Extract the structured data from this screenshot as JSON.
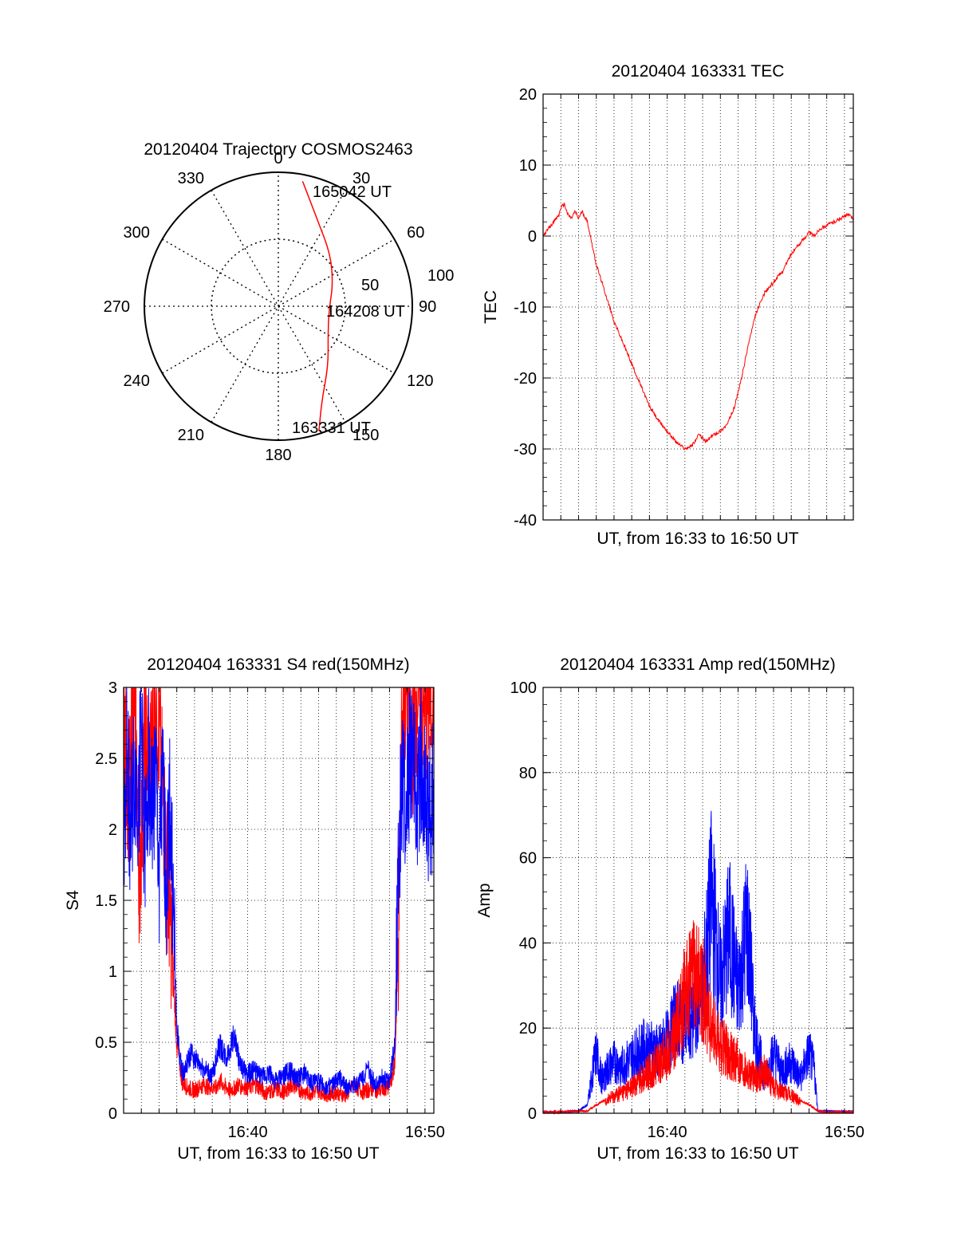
{
  "chart_data": [
    {
      "type": "polar-trajectory",
      "title": "20120404 Trajectory COSMOS2463",
      "angle_labels": [
        "0",
        "30",
        "60",
        "90",
        "120",
        "150",
        "180",
        "210",
        "240",
        "270",
        "300",
        "330"
      ],
      "radial_labels": [
        "50",
        "100"
      ],
      "elevation_range": [
        0,
        100
      ],
      "points": [
        {
          "time": "165042 UT",
          "azimuth": 11,
          "radius": 95
        },
        {
          "time": "",
          "azimuth": 25,
          "radius": 70
        },
        {
          "time": "",
          "azimuth": 45,
          "radius": 55
        },
        {
          "time": "",
          "azimuth": 68,
          "radius": 44
        },
        {
          "time": "164208 UT",
          "azimuth": 93,
          "radius": 38
        },
        {
          "time": "",
          "azimuth": 118,
          "radius": 42
        },
        {
          "time": "",
          "azimuth": 140,
          "radius": 58
        },
        {
          "time": "",
          "azimuth": 155,
          "radius": 77
        },
        {
          "time": "163331 UT",
          "azimuth": 162,
          "radius": 98
        }
      ],
      "line_color": "#ff0000"
    },
    {
      "type": "line",
      "title": "20120404 163331 TEC",
      "xlabel": "UT, from 16:33 to 16:50 UT",
      "ylabel": "TEC",
      "ylim": [
        -40,
        20
      ],
      "yticks": [
        20,
        10,
        0,
        -10,
        -20,
        -30,
        -40
      ],
      "xlim_minutes": [
        0,
        17.5
      ],
      "grid": true,
      "series": [
        {
          "color": "#ff0000",
          "x": [
            0.0,
            0.3,
            0.6,
            0.9,
            1.0,
            1.2,
            1.4,
            1.6,
            1.8,
            2.0,
            2.2,
            2.5,
            3.0,
            3.5,
            4.0,
            4.5,
            5.0,
            5.5,
            6.0,
            6.5,
            7.0,
            7.5,
            8.0,
            8.4,
            8.8,
            9.2,
            9.6,
            10.0,
            10.4,
            10.8,
            11.2,
            11.6,
            12.0,
            12.5,
            13.0,
            13.5,
            14.0,
            14.5,
            15.0,
            15.3,
            15.6,
            16.0,
            16.4,
            16.8,
            17.2,
            17.5
          ],
          "y": [
            0,
            1,
            2,
            3,
            4,
            4.5,
            3,
            2.5,
            3.5,
            2.5,
            3.5,
            2,
            -4,
            -8,
            -12,
            -15,
            -18,
            -21,
            -24,
            -26,
            -27.5,
            -29,
            -30,
            -29.5,
            -28,
            -29,
            -28,
            -27.5,
            -26.5,
            -24,
            -20,
            -15,
            -11,
            -8,
            -6.5,
            -5,
            -2.5,
            -1,
            0.5,
            0,
            1,
            1.5,
            2,
            2.5,
            3,
            2.5
          ]
        }
      ]
    },
    {
      "type": "line",
      "title": "20120404 163331 S4 red(150MHz)",
      "xlabel": "UT, from 16:33 to 16:50 UT",
      "ylabel": "S4",
      "ylim": [
        0,
        3
      ],
      "yticks": [
        "0",
        "0.5",
        "1",
        "1.5",
        "2",
        "2.5",
        "3"
      ],
      "xtick_labels": [
        "16:40",
        "16:50"
      ],
      "xlim_minutes": [
        0,
        17.5
      ],
      "grid": true,
      "series": [
        {
          "color": "#ff0000",
          "x": [
            0.0,
            0.3,
            0.6,
            0.9,
            1.2,
            1.5,
            1.8,
            2.1,
            2.4,
            2.7,
            3.0,
            3.3,
            3.6,
            4.0,
            4.5,
            5.0,
            5.5,
            6.0,
            6.5,
            7.0,
            7.5,
            8.0,
            8.5,
            9.0,
            9.5,
            10.0,
            10.5,
            11.0,
            11.5,
            12.0,
            12.5,
            13.0,
            13.5,
            14.0,
            14.5,
            15.0,
            15.3,
            15.5,
            15.7,
            16.0,
            16.3,
            16.6,
            17.0,
            17.5
          ],
          "y": [
            2.8,
            2.2,
            3.0,
            1.6,
            2.6,
            2.4,
            3.0,
            2.5,
            1.8,
            1.2,
            0.5,
            0.22,
            0.18,
            0.16,
            0.2,
            0.18,
            0.22,
            0.16,
            0.2,
            0.18,
            0.2,
            0.14,
            0.17,
            0.15,
            0.2,
            0.16,
            0.14,
            0.16,
            0.13,
            0.15,
            0.12,
            0.2,
            0.15,
            0.17,
            0.16,
            0.2,
            0.35,
            1.2,
            2.8,
            3.0,
            2.6,
            3.0,
            2.8,
            3.0
          ]
        },
        {
          "color": "#0000ff",
          "x": [
            0.0,
            0.2,
            0.4,
            0.6,
            0.8,
            1.0,
            1.2,
            1.4,
            1.6,
            1.8,
            2.0,
            2.2,
            2.4,
            2.6,
            2.8,
            3.0,
            3.2,
            3.4,
            3.8,
            4.2,
            4.6,
            5.0,
            5.4,
            5.8,
            6.2,
            6.6,
            7.0,
            7.4,
            7.8,
            8.2,
            8.6,
            9.0,
            9.4,
            9.8,
            10.2,
            10.6,
            11.0,
            11.4,
            11.8,
            12.2,
            12.6,
            13.0,
            13.4,
            13.8,
            14.2,
            14.6,
            15.0,
            15.3,
            15.5,
            15.7,
            15.9,
            16.2,
            16.5,
            16.8,
            17.1,
            17.5
          ],
          "y": [
            2.0,
            2.6,
            1.9,
            2.4,
            2.2,
            2.7,
            1.8,
            2.5,
            2.1,
            2.4,
            1.7,
            2.3,
            1.6,
            2.2,
            1.4,
            0.6,
            0.35,
            0.28,
            0.42,
            0.35,
            0.3,
            0.26,
            0.48,
            0.38,
            0.55,
            0.32,
            0.28,
            0.3,
            0.25,
            0.28,
            0.22,
            0.26,
            0.3,
            0.24,
            0.28,
            0.22,
            0.22,
            0.18,
            0.2,
            0.24,
            0.18,
            0.2,
            0.24,
            0.3,
            0.2,
            0.25,
            0.22,
            0.5,
            1.8,
            2.4,
            2.0,
            2.6,
            2.2,
            2.5,
            2.0,
            2.3
          ]
        }
      ]
    },
    {
      "type": "line",
      "title": "20120404 163331 Amp red(150MHz)",
      "xlabel": "UT, from 16:33 to 16:50 UT",
      "ylabel": "Amp",
      "ylim": [
        0,
        100
      ],
      "yticks": [
        0,
        20,
        40,
        60,
        80,
        100
      ],
      "xtick_labels": [
        "16:40",
        "16:50"
      ],
      "xlim_minutes": [
        0,
        17.5
      ],
      "grid": true,
      "series": [
        {
          "color": "#0000ff",
          "x": [
            0.0,
            1.0,
            2.0,
            2.5,
            2.8,
            3.0,
            3.3,
            3.6,
            4.0,
            4.5,
            5.0,
            5.5,
            6.0,
            6.5,
            7.0,
            7.5,
            8.0,
            8.5,
            9.0,
            9.5,
            10.0,
            10.5,
            11.0,
            11.5,
            12.0,
            12.5,
            13.0,
            13.5,
            14.0,
            14.5,
            15.0,
            15.3,
            15.5,
            16.0,
            17.0,
            17.5
          ],
          "y": [
            0.3,
            0.3,
            0.5,
            2,
            10,
            14,
            8,
            10,
            12,
            11,
            13,
            15,
            16,
            14,
            17,
            22,
            20,
            24,
            28,
            50,
            30,
            42,
            28,
            44,
            18,
            8,
            14,
            10,
            12,
            8,
            14,
            10,
            0.5,
            0.5,
            0.4,
            0.4
          ]
        },
        {
          "color": "#ff0000",
          "x": [
            0.0,
            2.5,
            3.0,
            3.5,
            4.0,
            4.5,
            5.0,
            5.5,
            6.0,
            6.5,
            7.0,
            7.5,
            8.0,
            8.5,
            9.0,
            9.5,
            10.0,
            10.5,
            11.0,
            11.5,
            12.0,
            12.5,
            13.0,
            13.5,
            14.0,
            14.5,
            15.0,
            15.5,
            16.0,
            17.5
          ],
          "y": [
            0.3,
            0.5,
            2,
            3,
            4,
            5,
            6,
            8,
            10,
            12,
            14,
            20,
            28,
            32,
            30,
            20,
            16,
            14,
            12,
            10,
            8,
            10,
            6,
            5,
            4,
            3,
            2,
            0.5,
            0.3,
            0.3
          ]
        }
      ]
    }
  ]
}
